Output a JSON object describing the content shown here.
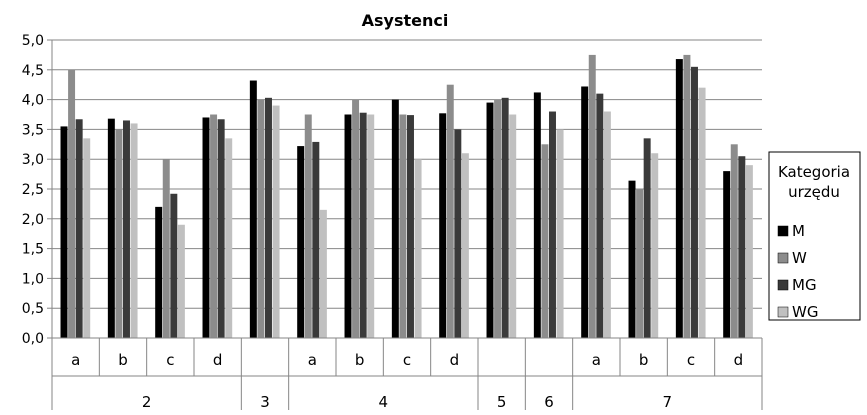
{
  "chart_data": {
    "type": "bar",
    "title": "Asystenci",
    "xlabel": "",
    "ylabel": "",
    "ylim": [
      0,
      5
    ],
    "y_ticks": [
      "0,0",
      "0,5",
      "1,0",
      "1,5",
      "2,0",
      "2,5",
      "3,0",
      "3,5",
      "4,0",
      "4,5",
      "5,0"
    ],
    "grid": true,
    "legend_position": "right",
    "groups": [
      {
        "label": "2",
        "subcategories": [
          "a",
          "b",
          "c",
          "d"
        ]
      },
      {
        "label": "3",
        "subcategories": [
          ""
        ]
      },
      {
        "label": "4",
        "subcategories": [
          "a",
          "b",
          "c",
          "d"
        ]
      },
      {
        "label": "5",
        "subcategories": [
          ""
        ]
      },
      {
        "label": "6",
        "subcategories": [
          ""
        ]
      },
      {
        "label": "7",
        "subcategories": [
          "a",
          "b",
          "c",
          "d"
        ]
      }
    ],
    "legend_title": [
      "Kategoria",
      "urzędu"
    ],
    "series": [
      {
        "name": "M",
        "color": "#000000",
        "values": [
          3.55,
          3.68,
          2.2,
          3.7,
          4.32,
          3.22,
          3.75,
          4.0,
          3.77,
          3.95,
          4.12,
          4.22,
          2.64,
          4.68,
          2.8
        ]
      },
      {
        "name": "W",
        "color": "#8c8c8c",
        "values": [
          4.5,
          3.5,
          3.0,
          3.75,
          4.0,
          3.75,
          4.0,
          3.75,
          4.25,
          4.0,
          3.25,
          4.75,
          2.5,
          4.75,
          3.25
        ]
      },
      {
        "name": "MG",
        "color": "#3a3a3a",
        "values": [
          3.67,
          3.65,
          2.42,
          3.67,
          4.03,
          3.29,
          3.78,
          3.74,
          3.5,
          4.03,
          3.8,
          4.1,
          3.35,
          4.55,
          3.05
        ]
      },
      {
        "name": "WG",
        "color": "#c0c0c0",
        "values": [
          3.35,
          3.6,
          1.9,
          3.35,
          3.9,
          2.15,
          3.75,
          3.0,
          3.1,
          3.75,
          3.5,
          3.8,
          3.1,
          4.2,
          2.9
        ]
      }
    ]
  }
}
